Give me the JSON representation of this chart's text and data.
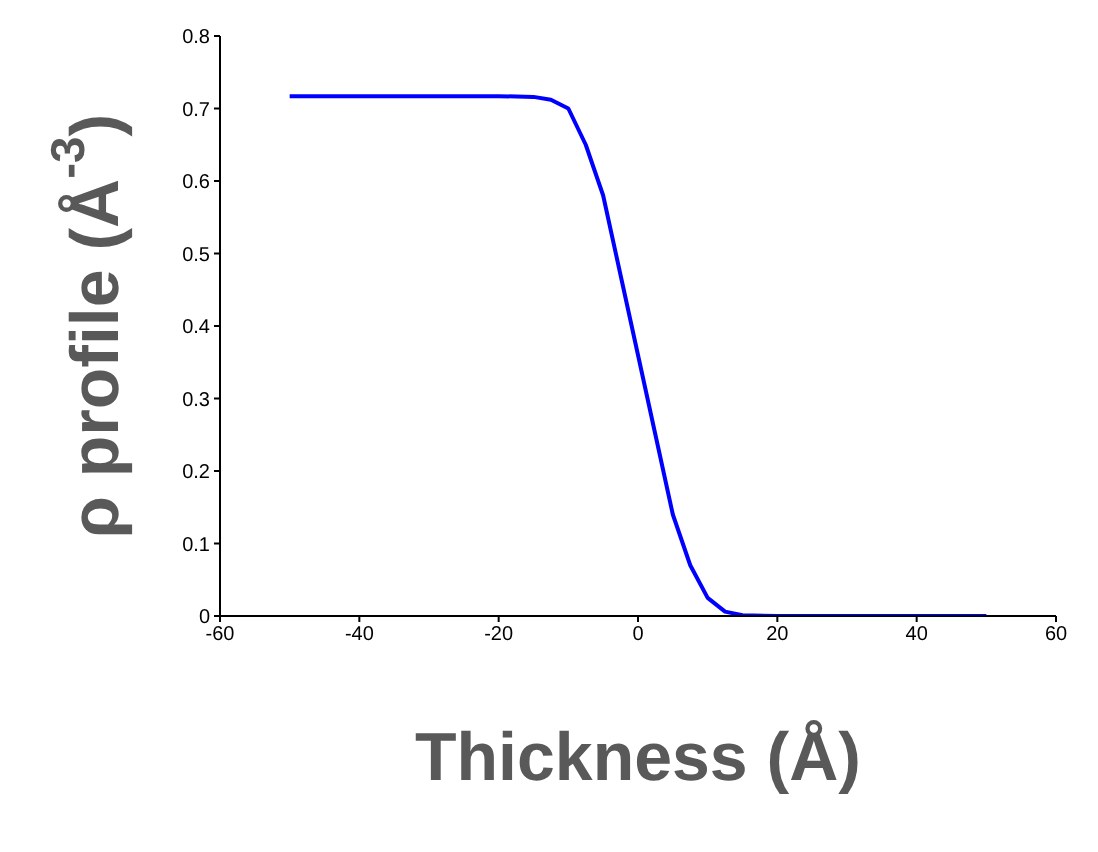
{
  "chart_data": {
    "type": "line",
    "xlabel": "Thickness (Å)",
    "ylabel": "ρ profile (Å$^{-3}$)",
    "x": [
      -50,
      -40,
      -30,
      -20,
      -15,
      -12.5,
      -10,
      -7.5,
      -5,
      -2.5,
      0,
      2.5,
      5,
      7.5,
      10,
      12.5,
      15,
      20,
      30,
      40,
      50
    ],
    "series": [
      {
        "color": "#0000ff",
        "values": [
          0.717,
          0.717,
          0.717,
          0.717,
          0.716,
          0.712,
          0.7,
          0.65,
          0.58,
          0.47,
          0.36,
          0.25,
          0.14,
          0.07,
          0.025,
          0.006,
          0.001,
          0,
          0,
          0,
          0
        ]
      }
    ],
    "xlim": [
      -60,
      60
    ],
    "xticks": [
      -60,
      -40,
      -20,
      0,
      20,
      40,
      60
    ],
    "ylim": [
      0,
      0.8
    ],
    "yticks": [
      0,
      0.1,
      0.2,
      0.3,
      0.4,
      0.5,
      0.6,
      0.7,
      0.8
    ],
    "grid": false,
    "legend": false,
    "marker": "none",
    "line_style": "solid"
  }
}
